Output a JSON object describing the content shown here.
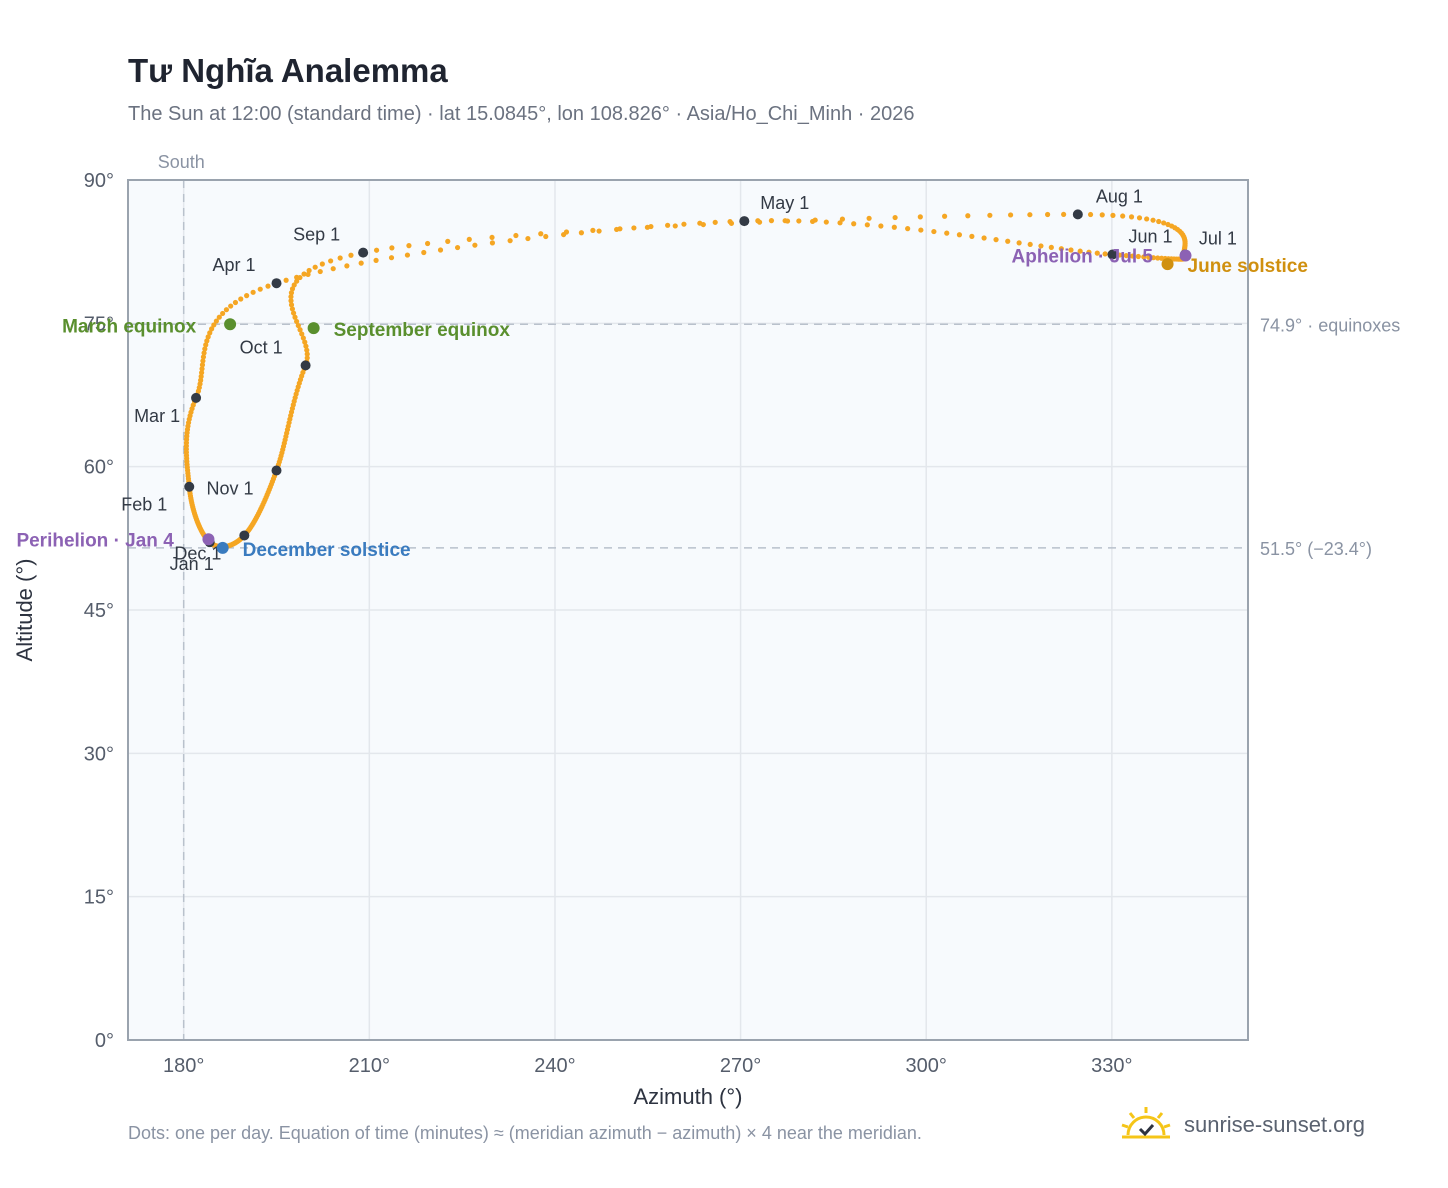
{
  "chart_data": {
    "type": "scatter",
    "title": "Tư Nghĩa Analemma",
    "subtitle": "The Sun at 12:00 (standard time) · lat 15.0845°, lon 108.826° · Asia/Ho_Chi_Minh · 2026",
    "xlabel": "Azimuth (°)",
    "ylabel": "Altitude (°)",
    "xlim": [
      171,
      352
    ],
    "ylim": [
      0,
      90
    ],
    "x_ticks": [
      {
        "value": 180,
        "label": "180°"
      },
      {
        "value": 210,
        "label": "210°"
      },
      {
        "value": 240,
        "label": "240°"
      },
      {
        "value": 270,
        "label": "270°"
      },
      {
        "value": 300,
        "label": "300°"
      },
      {
        "value": 330,
        "label": "330°"
      }
    ],
    "y_ticks": [
      {
        "value": 0,
        "label": "0°"
      },
      {
        "value": 15,
        "label": "15°"
      },
      {
        "value": 30,
        "label": "30°"
      },
      {
        "value": 45,
        "label": "45°"
      },
      {
        "value": 60,
        "label": "60°"
      },
      {
        "value": 75,
        "label": "75°"
      },
      {
        "value": 90,
        "label": "90°"
      }
    ],
    "grid": true,
    "meridian": {
      "azimuth": 180,
      "label": "South"
    },
    "reference_lines": [
      {
        "altitude": 74.9,
        "label": "74.9° · equinoxes"
      },
      {
        "altitude": 51.5,
        "label": "51.5° (−23.4°)"
      }
    ],
    "month_markers": [
      {
        "label": "Jan 1",
        "x": 184.2,
        "y": 52.1
      },
      {
        "label": "Feb 1",
        "x": 180.9,
        "y": 57.9
      },
      {
        "label": "Mar 1",
        "x": 182.0,
        "y": 67.2
      },
      {
        "label": "Apr 1",
        "x": 195.0,
        "y": 79.2
      },
      {
        "label": "May 1",
        "x": 270.6,
        "y": 85.7
      },
      {
        "label": "Jun 1",
        "x": 330.1,
        "y": 82.2
      },
      {
        "label": "Jul 1",
        "x": 341.8,
        "y": 82.2
      },
      {
        "label": "Aug 1",
        "x": 324.5,
        "y": 86.4
      },
      {
        "label": "Sep 1",
        "x": 209.0,
        "y": 82.4
      },
      {
        "label": "Oct 1",
        "x": 199.7,
        "y": 70.6
      },
      {
        "label": "Nov 1",
        "x": 195.0,
        "y": 59.6
      },
      {
        "label": "Dec 1",
        "x": 189.8,
        "y": 52.8
      }
    ],
    "events": [
      {
        "label": "March equinox",
        "x": 187.5,
        "y": 74.9,
        "color": "#5a8f2e"
      },
      {
        "label": "September equinox",
        "x": 201.0,
        "y": 74.5,
        "color": "#5a8f2e"
      },
      {
        "label": "June solstice",
        "x": 339.0,
        "y": 81.2,
        "color": "#d0900f"
      },
      {
        "label": "December solstice",
        "x": 186.3,
        "y": 51.5,
        "color": "#3a7bbf"
      },
      {
        "label": "Perihelion · Jan 4",
        "x": 184.0,
        "y": 52.4,
        "color": "#8c62b4"
      },
      {
        "label": "Aphelion · Jul 5",
        "x": 341.9,
        "y": 82.1,
        "color": "#8c62b4"
      }
    ],
    "colors": {
      "analemma": "#f5a623",
      "marker": "#333a45",
      "grid": "#e3e7ec",
      "plot_bg": "#f7fafd",
      "axis": "#9aa3ae"
    }
  },
  "footnote": "Dots: one per day. Equation of time (minutes) ≈ (meridian azimuth − azimuth) × 4 near the meridian.",
  "brand": {
    "text": "sunrise-sunset.org",
    "icon": "sun-check-icon"
  }
}
